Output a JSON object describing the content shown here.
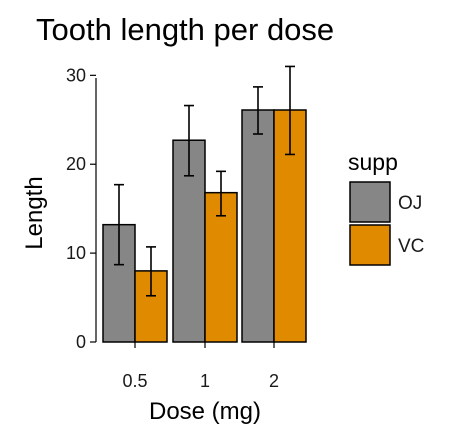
{
  "chart_data": {
    "type": "bar",
    "title": "Tooth length per dose",
    "xlabel": "Dose (mg)",
    "ylabel": "Length",
    "categories": [
      "0.5",
      "1",
      "2"
    ],
    "ylim": [
      0,
      31.5
    ],
    "yticks": [
      0,
      10,
      20,
      30
    ],
    "ytick_labels": [
      "0",
      "10",
      "20",
      "30"
    ],
    "grid": false,
    "legend": {
      "title": "supp",
      "placement": "right"
    },
    "series": [
      {
        "name": "OJ",
        "color": "#868686",
        "values": [
          13.2,
          22.7,
          26.1
        ],
        "error_low": [
          8.7,
          18.7,
          23.4
        ],
        "error_high": [
          17.7,
          26.6,
          28.7
        ]
      },
      {
        "name": "VC",
        "color": "#e08a00",
        "values": [
          8.0,
          16.8,
          26.1
        ],
        "error_low": [
          5.2,
          14.2,
          21.1
        ],
        "error_high": [
          10.7,
          19.2,
          31.0
        ]
      }
    ]
  }
}
